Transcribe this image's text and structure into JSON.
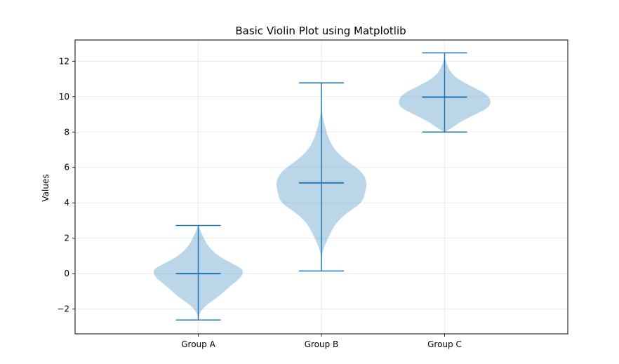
{
  "chart_data": {
    "type": "violin",
    "title": "Basic Violin Plot using Matplotlib",
    "xlabel": "",
    "ylabel": "Values",
    "categories": [
      "Group A",
      "Group B",
      "Group C"
    ],
    "ylim": [
      -3.4,
      13.2
    ],
    "yticks": [
      -2,
      0,
      2,
      4,
      6,
      8,
      10,
      12
    ],
    "ytick_labels": [
      "−2",
      "0",
      "2",
      "4",
      "6",
      "8",
      "10",
      "12"
    ],
    "grid": true,
    "colors": {
      "body": "#1f77b4",
      "body_opacity": 0.3,
      "lines": "#1f77b4"
    },
    "violins": [
      {
        "name": "Group A",
        "min": -2.62,
        "max": 2.72,
        "median": 0.0,
        "profile": [
          [
            -2.62,
            0.0
          ],
          [
            -2.3,
            0.01
          ],
          [
            -2.0,
            0.05
          ],
          [
            -1.7,
            0.12
          ],
          [
            -1.4,
            0.22
          ],
          [
            -1.0,
            0.32
          ],
          [
            -0.6,
            0.42
          ],
          [
            -0.2,
            0.53
          ],
          [
            0.2,
            0.56
          ],
          [
            0.5,
            0.45
          ],
          [
            0.9,
            0.28
          ],
          [
            1.3,
            0.17
          ],
          [
            1.7,
            0.1
          ],
          [
            2.1,
            0.06
          ],
          [
            2.4,
            0.03
          ],
          [
            2.72,
            0.0
          ]
        ]
      },
      {
        "name": "Group B",
        "min": 0.15,
        "max": 10.78,
        "median": 5.13,
        "profile": [
          [
            0.15,
            0.0
          ],
          [
            1.0,
            0.0
          ],
          [
            1.6,
            0.04
          ],
          [
            2.2,
            0.1
          ],
          [
            2.8,
            0.17
          ],
          [
            3.4,
            0.3
          ],
          [
            4.0,
            0.5
          ],
          [
            4.6,
            0.54
          ],
          [
            5.2,
            0.56
          ],
          [
            5.8,
            0.49
          ],
          [
            6.4,
            0.3
          ],
          [
            7.0,
            0.16
          ],
          [
            7.6,
            0.09
          ],
          [
            8.2,
            0.05
          ],
          [
            8.8,
            0.02
          ],
          [
            9.3,
            0.0
          ],
          [
            10.78,
            0.0
          ]
        ]
      },
      {
        "name": "Group C",
        "min": 8.0,
        "max": 12.47,
        "median": 9.97,
        "profile": [
          [
            8.0,
            0.0
          ],
          [
            8.2,
            0.08
          ],
          [
            8.6,
            0.2
          ],
          [
            9.0,
            0.38
          ],
          [
            9.4,
            0.55
          ],
          [
            9.8,
            0.57
          ],
          [
            10.2,
            0.5
          ],
          [
            10.6,
            0.32
          ],
          [
            11.0,
            0.16
          ],
          [
            11.4,
            0.07
          ],
          [
            11.8,
            0.03
          ],
          [
            12.2,
            0.0
          ],
          [
            12.47,
            0.0
          ]
        ]
      }
    ]
  }
}
